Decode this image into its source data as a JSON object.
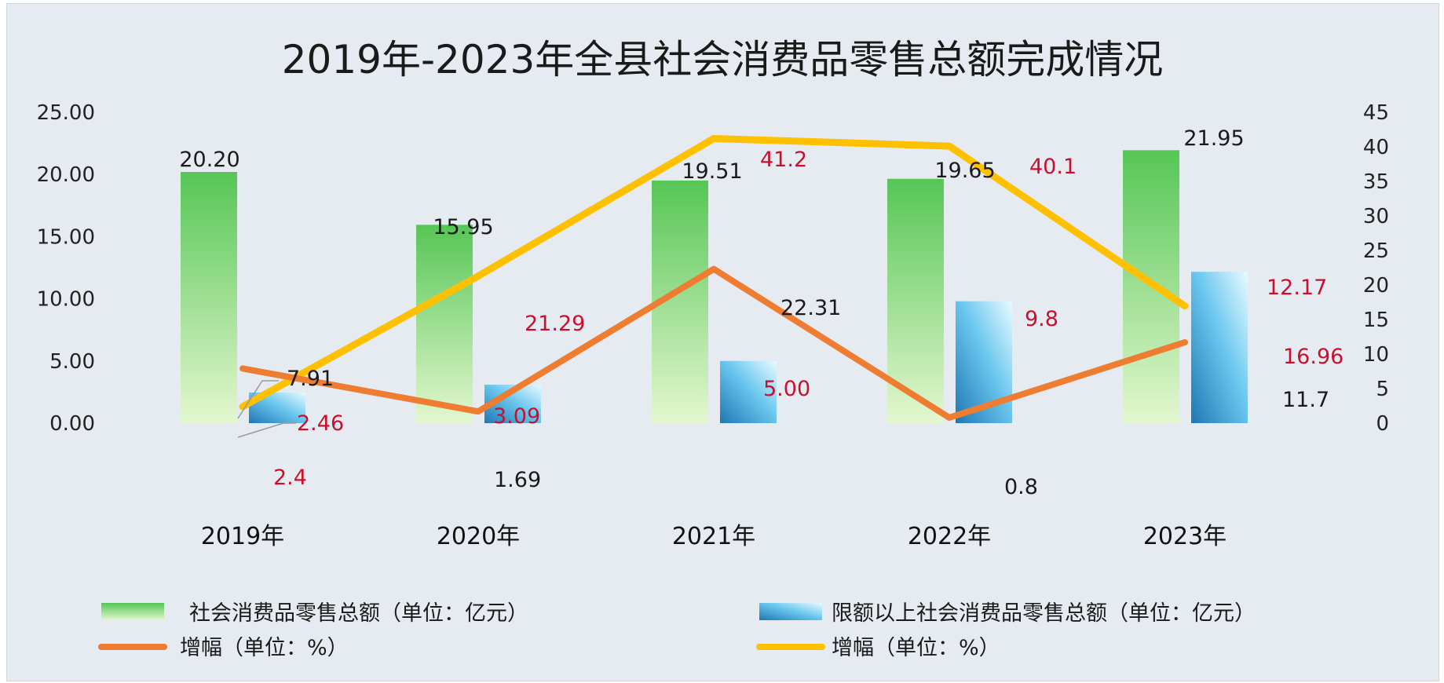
{
  "chart_data": {
    "type": "bar",
    "title": "2019年-2023年全县社会消费品零售总额完成情况",
    "categories": [
      "2019年",
      "2020年",
      "2021年",
      "2022年",
      "2023年"
    ],
    "y_left": {
      "ylim": [
        0,
        25
      ],
      "ticks": [
        "0.00",
        "5.00",
        "10.00",
        "15.00",
        "20.00",
        "25.00"
      ]
    },
    "y_right": {
      "ylim": [
        0,
        45
      ],
      "ticks": [
        "0",
        "5",
        "10",
        "15",
        "20",
        "25",
        "30",
        "35",
        "40",
        "45"
      ]
    },
    "series": [
      {
        "name": "社会消费品零售总额（单位：亿元）",
        "kind": "bar",
        "axis": "left",
        "color": "#5cc85c",
        "values": [
          20.2,
          15.95,
          19.51,
          19.65,
          21.95
        ],
        "labels": [
          "20.20",
          "15.95",
          "19.51",
          "19.65",
          "21.95"
        ]
      },
      {
        "name": "限额以上社会消费品零售总额（单位：亿元）",
        "kind": "bar",
        "axis": "left",
        "color": "#3aa7dd",
        "values": [
          2.46,
          3.09,
          5.0,
          9.8,
          12.17
        ],
        "labels": [
          "2.46",
          "3.09",
          "5.00",
          "9.8",
          "12.17"
        ]
      },
      {
        "name": "增幅（单位：%）",
        "kind": "line",
        "axis": "right",
        "color": "#ee7d31",
        "values": [
          7.91,
          1.69,
          22.31,
          0.8,
          11.7
        ],
        "labels": [
          "7.91",
          "1.69",
          "22.31",
          "0.8",
          "11.7"
        ]
      },
      {
        "name": "增幅（单位：%）",
        "kind": "line",
        "axis": "right",
        "color": "#ffc000",
        "values": [
          2.4,
          21.29,
          41.2,
          40.1,
          16.96
        ],
        "labels": [
          "2.4",
          "21.29",
          "41.2",
          "40.1",
          "16.96"
        ]
      }
    ],
    "legend_position": "bottom",
    "grid": false
  }
}
